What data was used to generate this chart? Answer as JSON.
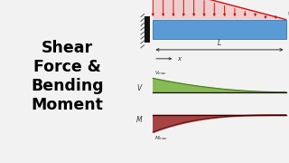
{
  "bg_color": "#f2f2f2",
  "left_bg": "#ffffff",
  "title_lines": [
    "Shear",
    "Force &",
    "Bending",
    "Moment"
  ],
  "title_color": "#000000",
  "title_fontsize": 12.5,
  "beam_color": "#5b9bd5",
  "load_color": "#cc1111",
  "shear_fill": "#7db544",
  "shear_edge": "#4a7a18",
  "moment_fill": "#a03030",
  "moment_edge": "#6a1515",
  "wall_color": "#555555",
  "label_color": "#333333",
  "dim_color": "#333333",
  "n_arrows": 14,
  "panel_split": 0.465
}
